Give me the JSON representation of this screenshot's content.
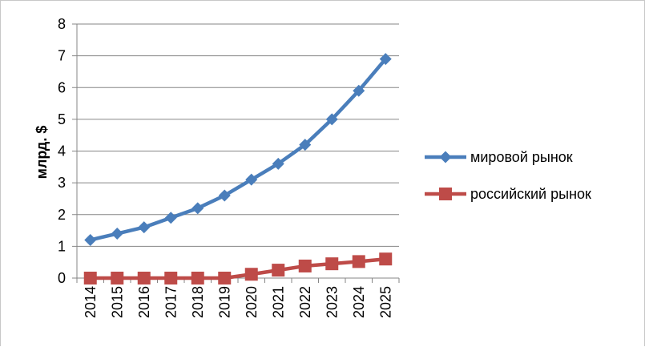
{
  "chart_data": {
    "type": "line",
    "title": "",
    "xlabel": "",
    "ylabel": "млрд. $",
    "x": [
      "2014",
      "2015",
      "2016",
      "2017",
      "2018",
      "2019",
      "2020",
      "2021",
      "2022",
      "2023",
      "2024",
      "2025"
    ],
    "ylim": [
      0,
      8
    ],
    "yticks": [
      "0",
      "1",
      "2",
      "3",
      "4",
      "5",
      "6",
      "7",
      "8"
    ],
    "grid": "horizontal",
    "legend": "right",
    "series": [
      {
        "name": "мировой рынок",
        "values": [
          1.2,
          1.4,
          1.6,
          1.9,
          2.2,
          2.6,
          3.1,
          3.6,
          4.2,
          5.0,
          5.9,
          6.9
        ],
        "color": "#4a7ebb",
        "marker": "diamond"
      },
      {
        "name": "российский рынок",
        "values": [
          0.0,
          0.0,
          0.0,
          0.0,
          0.0,
          0.0,
          0.12,
          0.25,
          0.38,
          0.45,
          0.52,
          0.6
        ],
        "color": "#be4b48",
        "marker": "square"
      }
    ]
  }
}
